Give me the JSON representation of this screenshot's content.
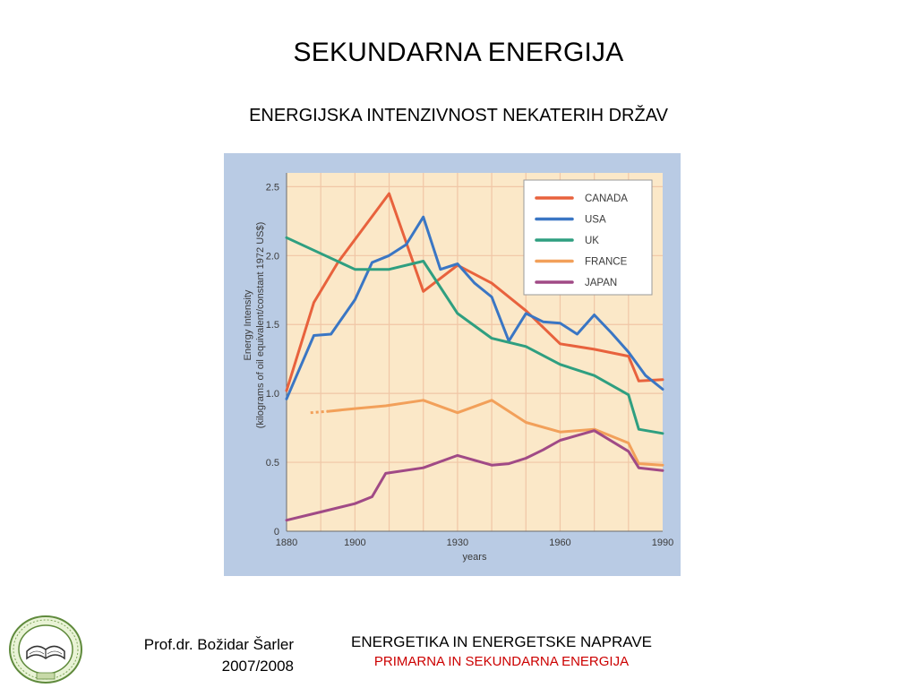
{
  "slide": {
    "title": "SEKUNDARNA ENERGIJA",
    "subtitle": "ENERGIJSKA INTENZIVNOST NEKATERIH DRŽAV"
  },
  "footer": {
    "author": "Prof.dr. Božidar Šarler",
    "years": "2007/2008",
    "course": "ENERGETIKA IN ENERGETSKE NAPRAVE",
    "topic": "PRIMARNA IN SEKUNDARNA ENERGIJA"
  },
  "colors": {
    "figure_bg": "#b9cbe4",
    "plot_bg": "#fbe8c8",
    "grid": "#f0c6a6",
    "canada": "#e8623d",
    "usa": "#3a76c4",
    "uk": "#2f9f80",
    "france": "#f2a05a",
    "japan": "#a04a86"
  },
  "chart_data": {
    "type": "line",
    "title": "",
    "xlabel": "years",
    "ylabel": "Energy Intensity (kilograms of oil equivalent/constant 1972 US$)",
    "xlim": [
      1880,
      1990
    ],
    "ylim": [
      0,
      2.6
    ],
    "xticks": [
      "1880",
      "1900",
      "1930",
      "1960",
      "1990"
    ],
    "yticks": [
      "0",
      "0.5",
      "1.0",
      "1.5",
      "2.0",
      "2.5"
    ],
    "grid": true,
    "legend_position": "top-right",
    "series": [
      {
        "name": "CANADA",
        "color": "#e8623d",
        "x": [
          1880,
          1888,
          1895,
          1910,
          1920,
          1930,
          1940,
          1950,
          1960,
          1970,
          1980,
          1983,
          1990
        ],
        "y": [
          1.02,
          1.66,
          1.95,
          2.45,
          1.74,
          1.93,
          1.8,
          1.6,
          1.36,
          1.32,
          1.27,
          1.09,
          1.1
        ]
      },
      {
        "name": "USA",
        "color": "#3a76c4",
        "x": [
          1880,
          1888,
          1893,
          1900,
          1905,
          1910,
          1915,
          1920,
          1925,
          1930,
          1935,
          1940,
          1945,
          1950,
          1955,
          1960,
          1965,
          1970,
          1975,
          1980,
          1985,
          1990
        ],
        "y": [
          0.96,
          1.42,
          1.43,
          1.68,
          1.95,
          2.0,
          2.08,
          2.28,
          1.9,
          1.94,
          1.8,
          1.7,
          1.38,
          1.58,
          1.52,
          1.51,
          1.43,
          1.57,
          1.44,
          1.3,
          1.13,
          1.03
        ]
      },
      {
        "name": "UK",
        "color": "#2f9f80",
        "x": [
          1880,
          1900,
          1905,
          1910,
          1920,
          1930,
          1940,
          1950,
          1960,
          1970,
          1975,
          1980,
          1983,
          1990
        ],
        "y": [
          2.13,
          1.9,
          1.9,
          1.9,
          1.96,
          1.58,
          1.4,
          1.34,
          1.21,
          1.13,
          1.06,
          0.99,
          0.74,
          0.71
        ]
      },
      {
        "name": "FRANCE",
        "color": "#f2a05a",
        "x": [
          1892,
          1900,
          1909,
          1920,
          1930,
          1940,
          1950,
          1960,
          1970,
          1980,
          1983,
          1990
        ],
        "y": [
          0.87,
          0.89,
          0.91,
          0.95,
          0.86,
          0.95,
          0.79,
          0.72,
          0.74,
          0.64,
          0.49,
          0.48
        ]
      },
      {
        "name": "JAPAN",
        "color": "#a04a86",
        "x": [
          1880,
          1890,
          1900,
          1905,
          1909,
          1920,
          1930,
          1940,
          1945,
          1950,
          1955,
          1960,
          1970,
          1980,
          1983,
          1990
        ],
        "y": [
          0.08,
          0.14,
          0.2,
          0.25,
          0.42,
          0.46,
          0.55,
          0.48,
          0.49,
          0.53,
          0.59,
          0.66,
          0.73,
          0.58,
          0.46,
          0.44
        ]
      }
    ]
  }
}
